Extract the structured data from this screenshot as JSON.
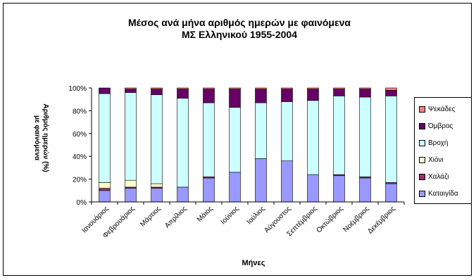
{
  "chart_data": {
    "type": "bar",
    "stacked": true,
    "title_line1": "Μέσος ανά μήνα αριθμός ημερών με φαινόμενα",
    "title_line2": "ΜΣ Ελληνικού 1955-2004",
    "xlabel": "Μήνες",
    "ylabel_line1": "Αριθμός ημερών (%)",
    "ylabel_line2": "με φαινόμενα",
    "ylim": [
      0,
      100
    ],
    "ytick_labels": [
      "0%",
      "20%",
      "40%",
      "60%",
      "80%",
      "100%"
    ],
    "categories": [
      "Ιανουάριος",
      "Φεβρουάριος",
      "Μάρτιος",
      "Απρίλιος",
      "Μάιος",
      "Ιούνιος",
      "Ιούλιος",
      "Αύγουστος",
      "Σεπτέμβριος",
      "Οκτώβριος",
      "Νοέμβριος",
      "Δεκέμβριος"
    ],
    "series": [
      {
        "name": "Καταιγίδα",
        "color": "#9999ff",
        "values": [
          10,
          12,
          12,
          13,
          21,
          26,
          38,
          36,
          24,
          23,
          21,
          16
        ]
      },
      {
        "name": "Χαλάζι",
        "color": "#993366",
        "values": [
          2,
          1,
          1,
          0,
          1,
          0,
          0,
          0,
          0,
          1,
          1,
          1
        ]
      },
      {
        "name": "Χιόνι",
        "color": "#ffffcc",
        "values": [
          5,
          6,
          3,
          0,
          0,
          0,
          0,
          0,
          0,
          0,
          0,
          0
        ]
      },
      {
        "name": "Βροχή",
        "color": "#ccffff",
        "values": [
          78,
          77,
          78,
          78,
          65,
          57,
          49,
          52,
          65,
          69,
          70,
          76
        ]
      },
      {
        "name": "Όμβρος",
        "color": "#660066",
        "values": [
          5,
          3,
          5,
          8,
          12,
          16,
          12,
          11,
          10,
          6,
          7,
          5
        ]
      },
      {
        "name": "Ψεκάδες",
        "color": "#ff8080",
        "values": [
          0,
          1,
          1,
          1,
          1,
          1,
          1,
          1,
          1,
          1,
          1,
          2
        ]
      }
    ],
    "legend_position": "right",
    "grid": false
  }
}
